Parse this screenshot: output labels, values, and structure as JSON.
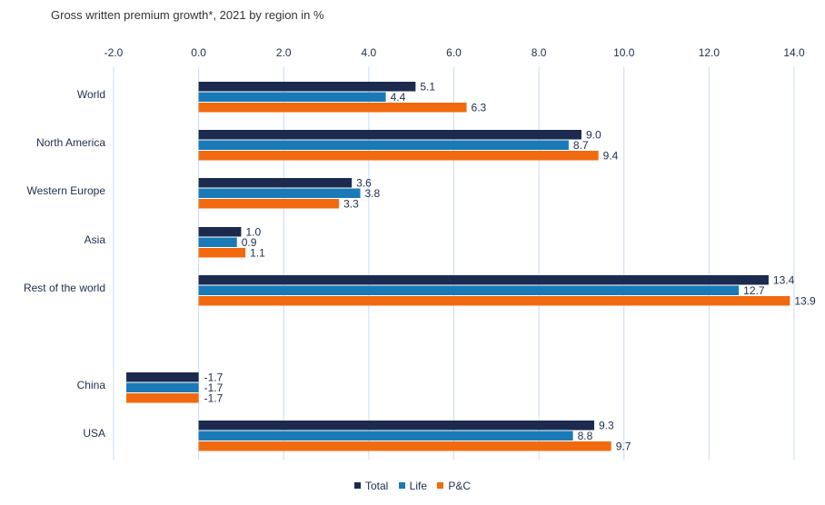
{
  "title": "Gross written premium growth*, 2021 by region in %",
  "chart_data": {
    "type": "bar",
    "orientation": "horizontal",
    "title": "Gross written premium growth*, 2021 by region in %",
    "xlim": [
      -2.0,
      14.0
    ],
    "x_ticks": [
      -2.0,
      0.0,
      2.0,
      4.0,
      6.0,
      8.0,
      10.0,
      12.0,
      14.0
    ],
    "x_tick_labels": [
      "-2.0",
      "0.0",
      "2.0",
      "4.0",
      "6.0",
      "8.0",
      "10.0",
      "12.0",
      "14.0"
    ],
    "x_axis_position": "top",
    "grid": "vertical",
    "legend_position": "bottom",
    "categories": [
      "World",
      "North America",
      "Western Europe",
      "Asia",
      "Rest of the world",
      "China",
      "USA"
    ],
    "series": [
      {
        "name": "Total",
        "color": "#1b2a4e",
        "values": [
          5.1,
          9.0,
          3.6,
          1.0,
          13.4,
          -1.7,
          9.3
        ],
        "labels": [
          "5.1",
          "9.0",
          "3.6",
          "1.0",
          "13.4",
          "-1.7",
          "9.3"
        ]
      },
      {
        "name": "Life",
        "color": "#1a7ab8",
        "values": [
          4.4,
          8.7,
          3.8,
          0.9,
          12.7,
          -1.7,
          8.8
        ],
        "labels": [
          "4.4",
          "8.7",
          "3.8",
          "0.9",
          "12.7",
          "-1.7",
          "8.8"
        ]
      },
      {
        "name": "P&C",
        "color": "#f26a0f",
        "values": [
          6.3,
          9.4,
          3.3,
          1.1,
          13.9,
          -1.7,
          9.7
        ],
        "labels": [
          "6.3",
          "9.4",
          "3.3",
          "1.1",
          "13.9",
          "-1.7",
          "9.7"
        ]
      }
    ]
  }
}
